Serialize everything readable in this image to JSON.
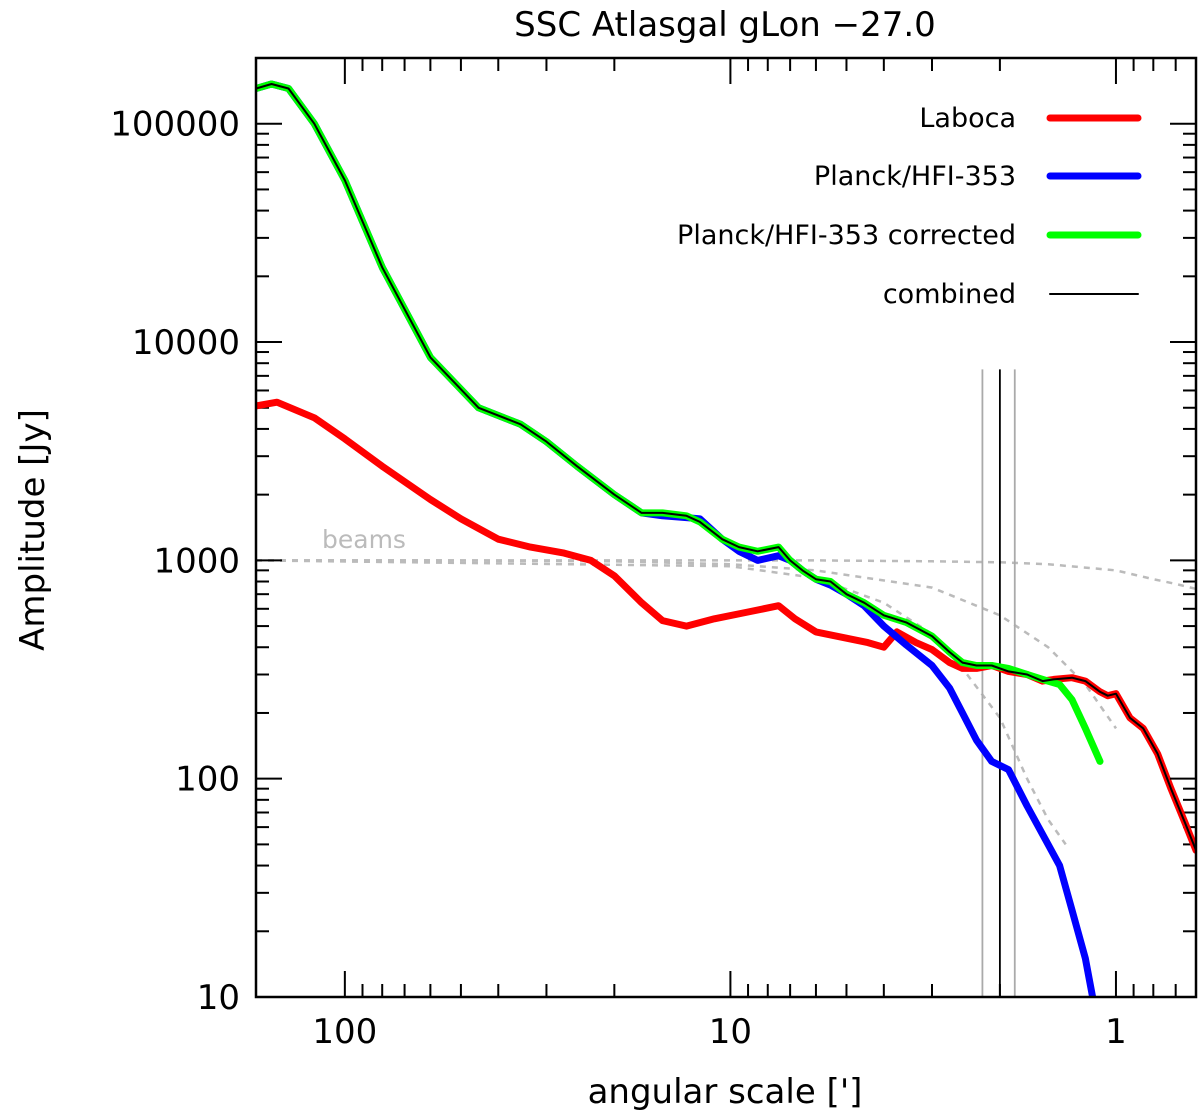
{
  "chart_data": {
    "type": "line",
    "title": "SSC Atlasgal gLon −27.0",
    "xlabel": "angular scale [']",
    "ylabel": "Amplitude [Jy]",
    "x_scale": "log-reversed",
    "y_scale": "log",
    "xlim": [
      170,
      0.62
    ],
    "ylim": [
      10,
      200000
    ],
    "x_ticks": [
      {
        "value": 100,
        "label": "100"
      },
      {
        "value": 10,
        "label": "10"
      },
      {
        "value": 1,
        "label": "1"
      }
    ],
    "y_ticks": [
      {
        "value": 10,
        "label": "10"
      },
      {
        "value": 100,
        "label": "100"
      },
      {
        "value": 1000,
        "label": "1000"
      },
      {
        "value": 10000,
        "label": "10000"
      },
      {
        "value": 100000,
        "label": "100000"
      }
    ],
    "legend_position": "top-right",
    "series": [
      {
        "name": "Laboca",
        "color": "#ff0000",
        "style": "thick",
        "points": [
          [
            170,
            5100
          ],
          [
            150,
            5300
          ],
          [
            120,
            4500
          ],
          [
            100,
            3600
          ],
          [
            80,
            2700
          ],
          [
            60,
            1900
          ],
          [
            50,
            1550
          ],
          [
            40,
            1250
          ],
          [
            33,
            1150
          ],
          [
            27,
            1080
          ],
          [
            23,
            1000
          ],
          [
            20,
            850
          ],
          [
            17,
            640
          ],
          [
            15,
            530
          ],
          [
            13,
            500
          ],
          [
            11,
            540
          ],
          [
            9,
            580
          ],
          [
            7.5,
            620
          ],
          [
            6.8,
            540
          ],
          [
            6,
            470
          ],
          [
            5,
            440
          ],
          [
            4.4,
            420
          ],
          [
            4.0,
            400
          ],
          [
            3.7,
            470
          ],
          [
            3.3,
            420
          ],
          [
            3.0,
            390
          ],
          [
            2.7,
            340
          ],
          [
            2.5,
            320
          ],
          [
            2.3,
            320
          ],
          [
            2.1,
            330
          ],
          [
            1.9,
            310
          ],
          [
            1.7,
            300
          ],
          [
            1.55,
            280
          ],
          [
            1.45,
            285
          ],
          [
            1.3,
            290
          ],
          [
            1.2,
            280
          ],
          [
            1.1,
            250
          ],
          [
            1.05,
            240
          ],
          [
            1.0,
            245
          ],
          [
            0.92,
            190
          ],
          [
            0.85,
            170
          ],
          [
            0.78,
            130
          ],
          [
            0.72,
            90
          ],
          [
            0.66,
            62
          ],
          [
            0.62,
            47
          ]
        ]
      },
      {
        "name": "Planck/HFI-353",
        "color": "#0000ff",
        "style": "thick",
        "points": [
          [
            170,
            145000
          ],
          [
            155,
            152000
          ],
          [
            140,
            145000
          ],
          [
            120,
            100000
          ],
          [
            100,
            55000
          ],
          [
            80,
            22000
          ],
          [
            60,
            8500
          ],
          [
            45,
            5000
          ],
          [
            35,
            4200
          ],
          [
            30,
            3500
          ],
          [
            25,
            2700
          ],
          [
            20,
            2000
          ],
          [
            17,
            1650
          ],
          [
            15,
            1600
          ],
          [
            13,
            1570
          ],
          [
            12,
            1550
          ],
          [
            10.5,
            1250
          ],
          [
            9.5,
            1100
          ],
          [
            8.5,
            1000
          ],
          [
            7.5,
            1050
          ],
          [
            7,
            1000
          ],
          [
            6.5,
            900
          ],
          [
            6,
            820
          ],
          [
            5.5,
            770
          ],
          [
            5,
            700
          ],
          [
            4.5,
            620
          ],
          [
            4.0,
            500
          ],
          [
            3.5,
            410
          ],
          [
            3.0,
            330
          ],
          [
            2.7,
            260
          ],
          [
            2.5,
            200
          ],
          [
            2.3,
            150
          ],
          [
            2.1,
            120
          ],
          [
            1.9,
            110
          ],
          [
            1.7,
            75
          ],
          [
            1.5,
            50
          ],
          [
            1.4,
            40
          ],
          [
            1.3,
            25
          ],
          [
            1.2,
            15
          ],
          [
            1.15,
            10
          ]
        ]
      },
      {
        "name": "Planck/HFI-353 corrected",
        "color": "#00ff00",
        "style": "thick",
        "points": [
          [
            170,
            145000
          ],
          [
            155,
            152000
          ],
          [
            140,
            145000
          ],
          [
            120,
            100000
          ],
          [
            100,
            55000
          ],
          [
            80,
            22000
          ],
          [
            60,
            8500
          ],
          [
            45,
            5000
          ],
          [
            35,
            4200
          ],
          [
            30,
            3500
          ],
          [
            25,
            2700
          ],
          [
            20,
            2000
          ],
          [
            17,
            1650
          ],
          [
            15,
            1650
          ],
          [
            13,
            1600
          ],
          [
            12,
            1500
          ],
          [
            10.5,
            1250
          ],
          [
            9.5,
            1150
          ],
          [
            8.5,
            1100
          ],
          [
            7.5,
            1150
          ],
          [
            7,
            1000
          ],
          [
            6.5,
            900
          ],
          [
            6,
            820
          ],
          [
            5.5,
            800
          ],
          [
            5,
            700
          ],
          [
            4.5,
            640
          ],
          [
            4.0,
            560
          ],
          [
            3.5,
            520
          ],
          [
            3.0,
            450
          ],
          [
            2.7,
            380
          ],
          [
            2.5,
            340
          ],
          [
            2.3,
            330
          ],
          [
            2.1,
            330
          ],
          [
            1.9,
            320
          ],
          [
            1.7,
            300
          ],
          [
            1.5,
            280
          ],
          [
            1.4,
            270
          ],
          [
            1.3,
            230
          ],
          [
            1.2,
            170
          ],
          [
            1.1,
            120
          ]
        ]
      },
      {
        "name": "combined",
        "color": "#000000",
        "style": "thin",
        "points": [
          [
            170,
            145000
          ],
          [
            155,
            152000
          ],
          [
            140,
            145000
          ],
          [
            120,
            100000
          ],
          [
            100,
            55000
          ],
          [
            80,
            22000
          ],
          [
            60,
            8500
          ],
          [
            45,
            5000
          ],
          [
            35,
            4200
          ],
          [
            30,
            3500
          ],
          [
            25,
            2700
          ],
          [
            20,
            2000
          ],
          [
            17,
            1650
          ],
          [
            15,
            1650
          ],
          [
            13,
            1600
          ],
          [
            12,
            1500
          ],
          [
            10.5,
            1250
          ],
          [
            9.5,
            1150
          ],
          [
            8.5,
            1100
          ],
          [
            7.5,
            1150
          ],
          [
            7,
            1000
          ],
          [
            6.5,
            900
          ],
          [
            6,
            820
          ],
          [
            5.5,
            800
          ],
          [
            5,
            700
          ],
          [
            4.5,
            640
          ],
          [
            4.0,
            560
          ],
          [
            3.5,
            520
          ],
          [
            3.0,
            450
          ],
          [
            2.7,
            380
          ],
          [
            2.5,
            340
          ],
          [
            2.3,
            330
          ],
          [
            2.1,
            330
          ],
          [
            1.9,
            310
          ],
          [
            1.7,
            300
          ],
          [
            1.55,
            280
          ],
          [
            1.45,
            285
          ],
          [
            1.3,
            290
          ],
          [
            1.2,
            280
          ],
          [
            1.1,
            250
          ],
          [
            1.05,
            240
          ],
          [
            1.0,
            245
          ],
          [
            0.92,
            190
          ],
          [
            0.85,
            170
          ],
          [
            0.78,
            130
          ],
          [
            0.72,
            90
          ],
          [
            0.66,
            62
          ],
          [
            0.62,
            47
          ]
        ]
      }
    ],
    "beams": {
      "label": "beams",
      "color": "#bbbbbb",
      "curves": [
        {
          "points": [
            [
              170,
              1000
            ],
            [
              60,
              1000
            ],
            [
              20,
              990
            ],
            [
              10,
              960
            ],
            [
              6,
              900
            ],
            [
              3,
              750
            ],
            [
              2,
              560
            ],
            [
              1.5,
              400
            ],
            [
              1.2,
              270
            ],
            [
              1.0,
              170
            ]
          ]
        },
        {
          "points": [
            [
              170,
              1000
            ],
            [
              20,
              1000
            ],
            [
              6,
              1000
            ],
            [
              3,
              990
            ],
            [
              2,
              980
            ],
            [
              1.5,
              960
            ],
            [
              1,
              900
            ],
            [
              0.8,
              820
            ],
            [
              0.7,
              780
            ],
            [
              0.62,
              740
            ]
          ]
        },
        {
          "points": [
            [
              170,
              1000
            ],
            [
              10,
              940
            ],
            [
              6,
              830
            ],
            [
              4,
              640
            ],
            [
              3,
              460
            ],
            [
              2.5,
              320
            ],
            [
              2,
              190
            ],
            [
              1.7,
              100
            ],
            [
              1.5,
              65
            ],
            [
              1.35,
              50
            ]
          ]
        }
      ]
    },
    "vertical_lines": [
      {
        "x": 2.22,
        "color": "#aaaaaa"
      },
      {
        "x": 2.0,
        "color": "#000000"
      },
      {
        "x": 1.83,
        "color": "#aaaaaa"
      }
    ]
  }
}
